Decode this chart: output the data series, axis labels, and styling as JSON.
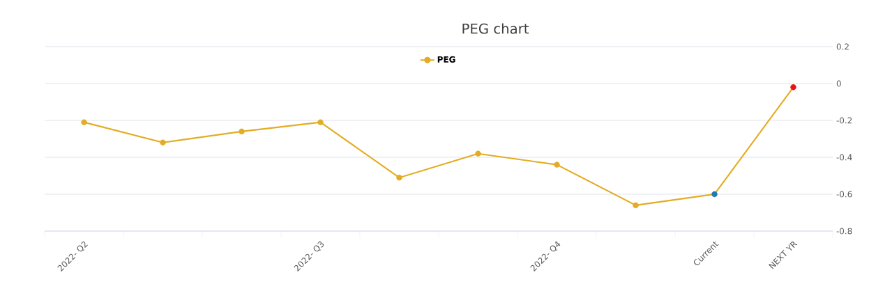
{
  "chart_data": {
    "type": "line",
    "title": "PEG chart",
    "categories": [
      "2022- Q2",
      null,
      null,
      "2022- Q3",
      null,
      null,
      "2022- Q4",
      null,
      "Current",
      "NEXT YR"
    ],
    "series": [
      {
        "name": "PEG",
        "color": "#e3ac22",
        "colors": [
          "#e3ac22",
          "#e3ac22",
          "#e3ac22",
          "#e3ac22",
          "#e3ac22",
          "#e3ac22",
          "#e3ac22",
          "#e3ac22",
          "#1f77b4",
          "#ee1111"
        ],
        "values": [
          -0.21,
          -0.32,
          -0.26,
          -0.21,
          -0.51,
          -0.38,
          -0.44,
          -0.66,
          -0.6,
          -0.02
        ]
      }
    ],
    "ylim": [
      -0.8,
      0.2
    ],
    "yticks": [
      -0.8,
      -0.6,
      -0.4,
      -0.2,
      0,
      0.2
    ],
    "grid": "y",
    "legend": "top",
    "marker": "circle",
    "line_style": "solid"
  }
}
